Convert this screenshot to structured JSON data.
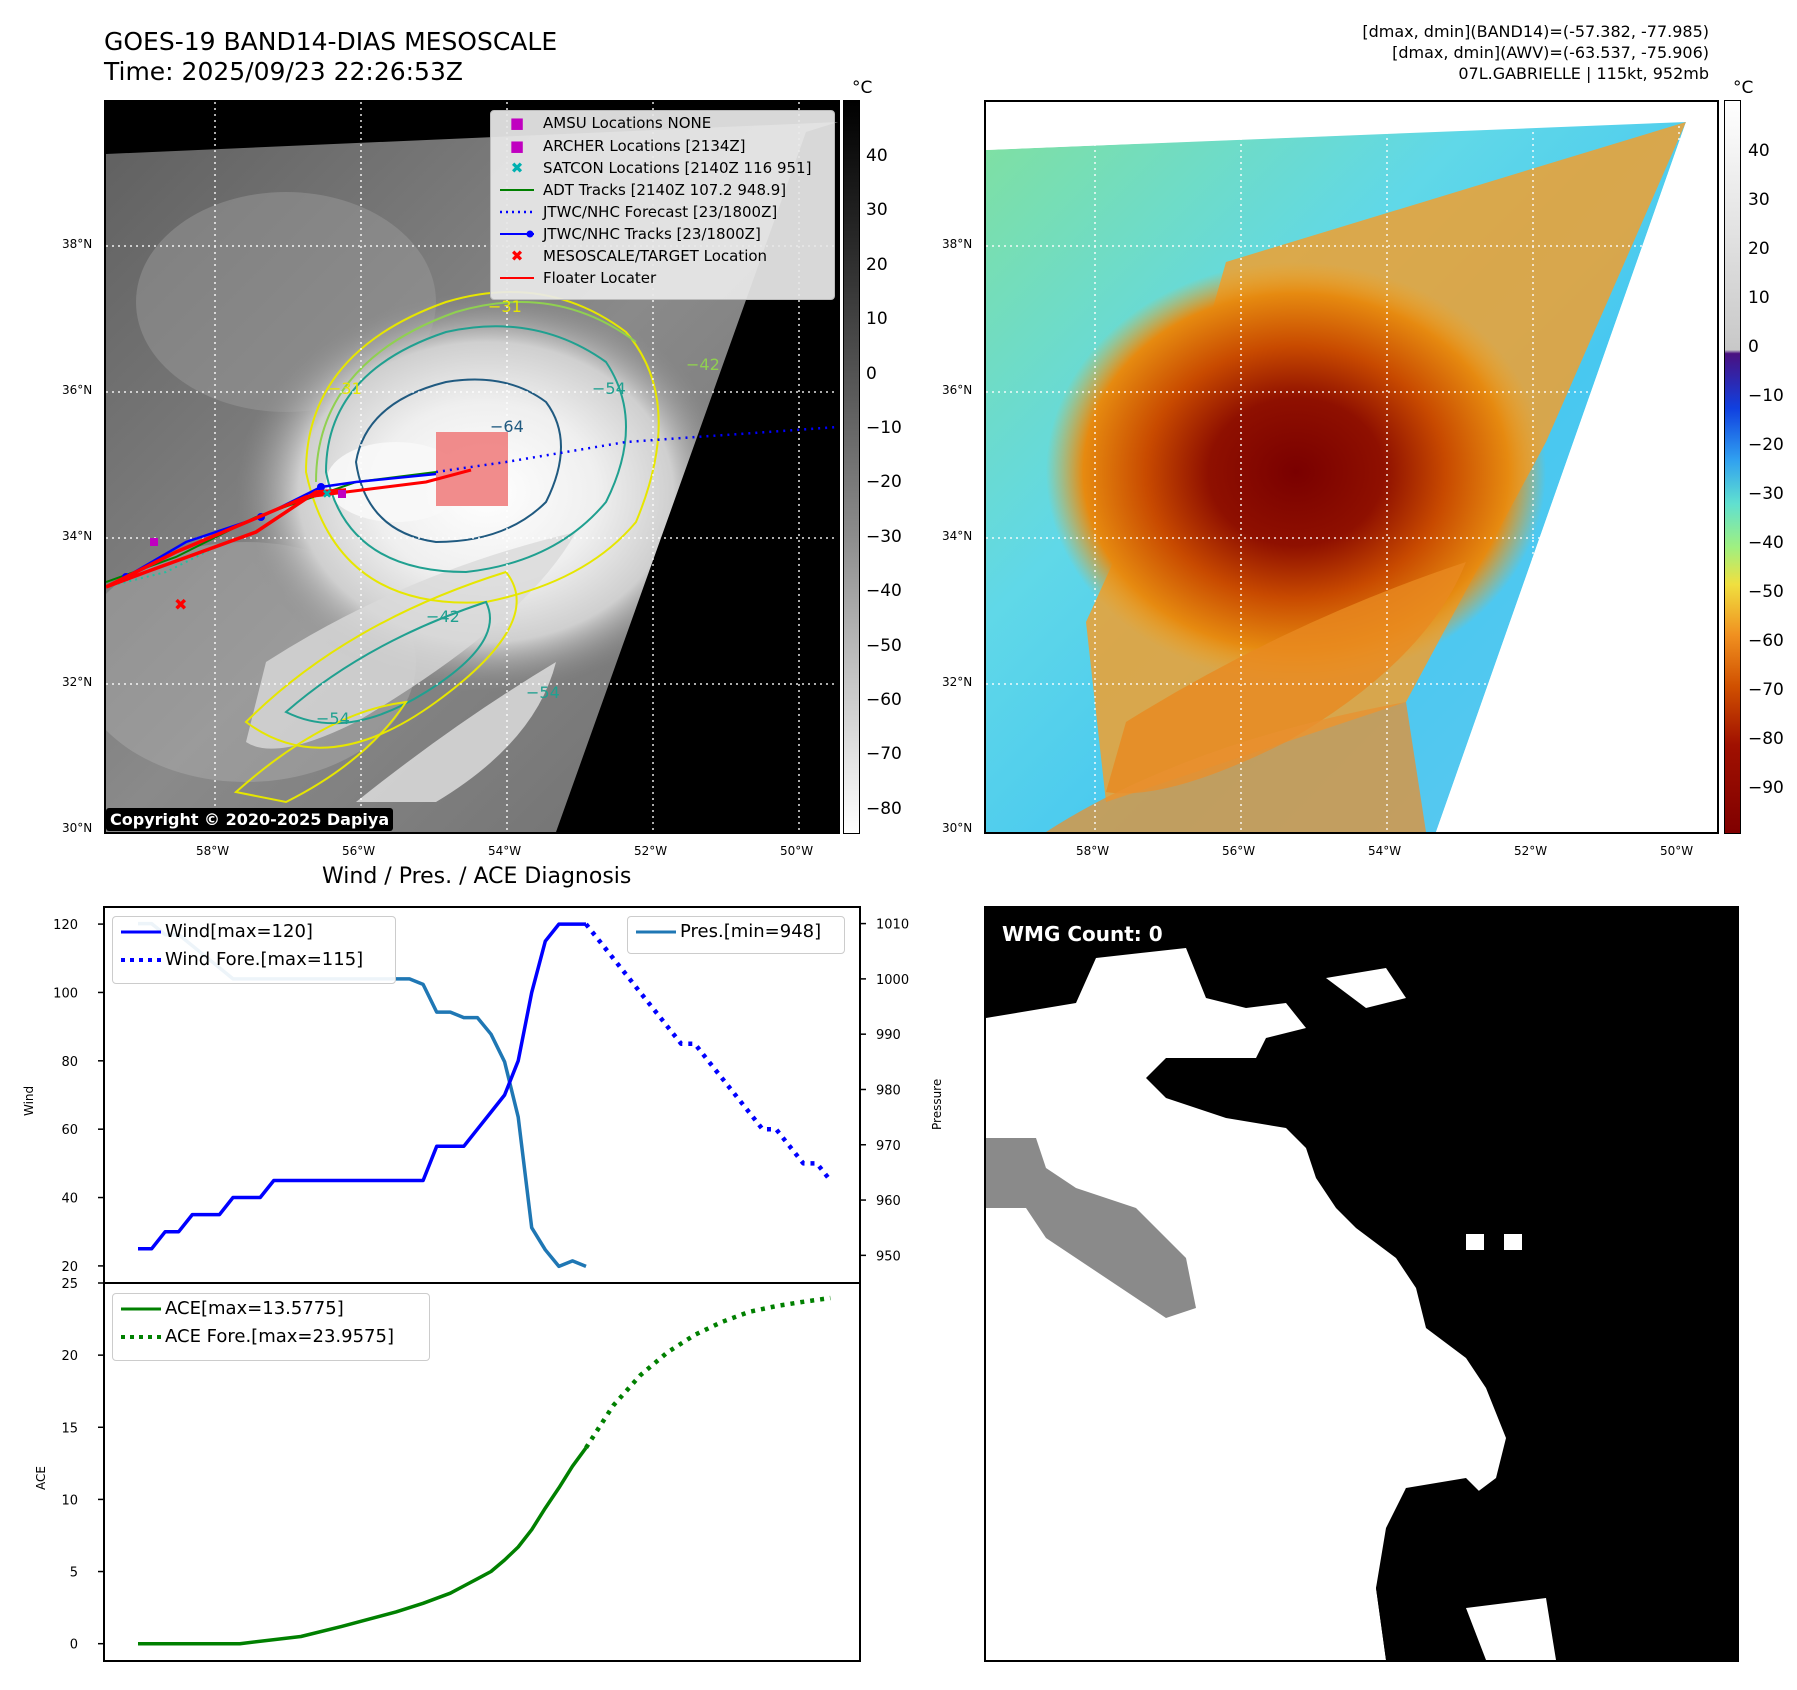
{
  "header": {
    "title_line1": "GOES-19 BAND14-DIAS MESOSCALE",
    "title_line2": "Time: 2025/09/23 22:26:53Z",
    "info_line1": "[dmax, dmin](BAND14)=(-57.382, -77.985)",
    "info_line2": "[dmax, dmin](AWV)=(-63.537, -75.906)",
    "info_line3": "07L.GABRIELLE | 115kt, 952mb"
  },
  "map_axes": {
    "lat_labels": [
      "38°N",
      "36°N",
      "34°N",
      "32°N",
      "30°N"
    ],
    "lon_labels": [
      "58°W",
      "56°W",
      "54°W",
      "52°W",
      "50°W"
    ]
  },
  "ir_panel": {
    "colorbar_unit": "°C",
    "colorbar_ticks": [
      "40",
      "30",
      "20",
      "10",
      "0",
      "−10",
      "−20",
      "−30",
      "−40",
      "−50",
      "−60",
      "−70",
      "−80"
    ],
    "contour_labels": [
      "−31",
      "−54",
      "−64",
      "−42",
      "−54",
      "−54",
      "−31",
      "−42"
    ],
    "copyright": "Copyright © 2020-2025 Dapiya",
    "legend": [
      {
        "label": "AMSU Locations NONE",
        "symbol": "■",
        "color": "#c000c0"
      },
      {
        "label": "ARCHER Locations [2134Z]",
        "symbol": "■",
        "color": "#c000c0"
      },
      {
        "label": "SATCON Locations [2140Z 116 951]",
        "symbol": "✖",
        "color": "#00b0b0"
      },
      {
        "label": "ADT Tracks [2140Z 107.2 948.9]",
        "symbol": "line",
        "color": "#008000"
      },
      {
        "label": "JTWC/NHC Forecast [23/1800Z]",
        "symbol": "dotted",
        "color": "#0000ff"
      },
      {
        "label": "JTWC/NHC Tracks [23/1800Z]",
        "symbol": "dotline",
        "color": "#0000ff"
      },
      {
        "label": "MESOSCALE/TARGET Location",
        "symbol": "✖",
        "color": "#ff0000"
      },
      {
        "label": "Floater Locater",
        "symbol": "line",
        "color": "#ff0000"
      }
    ]
  },
  "wv_panel": {
    "colorbar_unit": "°C",
    "colorbar_ticks": [
      "40",
      "30",
      "20",
      "10",
      "0",
      "−10",
      "−20",
      "−30",
      "−40",
      "−50",
      "−60",
      "−70",
      "−80",
      "−90"
    ]
  },
  "diag": {
    "title": "Wind / Pres. / ACE Diagnosis",
    "wind_ylabel": "Wind",
    "pres_ylabel": "Pressure",
    "ace_ylabel": "ACE",
    "legend_wind": "Wind[max=120]",
    "legend_wind_fore": "Wind Fore.[max=115]",
    "legend_pres": "Pres.[min=948]",
    "legend_ace": "ACE[max=13.5775]",
    "legend_ace_fore": "ACE Fore.[max=23.9575]"
  },
  "wmg": {
    "label": "WMG Count: 0"
  },
  "chart_data": [
    {
      "type": "line",
      "title": "Wind / Pres. / ACE Diagnosis",
      "ylabel": "Wind",
      "ylim": [
        15,
        125
      ],
      "yticks": [
        20,
        40,
        60,
        80,
        100,
        120
      ],
      "xlim": [
        0,
        52
      ],
      "series": [
        {
          "name": "Wind[max=120]",
          "color": "#0000ff",
          "style": "solid",
          "x": [
            0,
            1,
            2,
            3,
            4,
            5,
            6,
            7,
            8,
            9,
            10,
            11,
            12,
            13,
            14,
            15,
            16,
            17,
            18,
            19,
            20,
            21,
            22,
            23,
            24,
            25,
            26,
            27,
            28,
            29,
            30,
            31,
            32,
            33
          ],
          "values": [
            25,
            25,
            30,
            30,
            35,
            35,
            35,
            40,
            40,
            40,
            45,
            45,
            45,
            45,
            45,
            45,
            45,
            45,
            45,
            45,
            45,
            45,
            55,
            55,
            55,
            60,
            65,
            70,
            80,
            100,
            115,
            120,
            120,
            120
          ]
        },
        {
          "name": "Wind Fore.[max=115]",
          "color": "#0000ff",
          "style": "dotted",
          "x": [
            33,
            34,
            35,
            36,
            37,
            38,
            39,
            40,
            41,
            42,
            43,
            44,
            45,
            46,
            47,
            48,
            49,
            50,
            51
          ],
          "values": [
            120,
            115,
            110,
            105,
            100,
            95,
            90,
            85,
            85,
            80,
            75,
            70,
            65,
            60,
            60,
            55,
            50,
            50,
            45
          ]
        }
      ]
    },
    {
      "type": "line",
      "ylabel": "Pressure",
      "ylim": [
        945,
        1013
      ],
      "yticks": [
        950,
        960,
        970,
        980,
        990,
        1000,
        1010
      ],
      "series": [
        {
          "name": "Pres.[min=948]",
          "color": "#1f77b4",
          "style": "solid",
          "x": [
            0,
            1,
            2,
            3,
            4,
            5,
            6,
            7,
            8,
            9,
            10,
            11,
            12,
            13,
            14,
            15,
            16,
            17,
            18,
            19,
            20,
            21,
            22,
            23,
            24,
            25,
            26,
            27,
            28,
            29,
            30,
            31,
            32,
            33
          ],
          "values": [
            1010,
            1010,
            1008,
            1008,
            1006,
            1004,
            1002,
            1000,
            1000,
            1000,
            1000,
            1000,
            1000,
            1000,
            1000,
            1000,
            1000,
            1000,
            1000,
            1000,
            1000,
            999,
            994,
            994,
            993,
            993,
            990,
            985,
            975,
            955,
            951,
            948,
            949,
            948
          ]
        }
      ]
    },
    {
      "type": "line",
      "ylabel": "ACE",
      "ylim": [
        -1.2,
        25
      ],
      "yticks": [
        0,
        5,
        10,
        15,
        20,
        25
      ],
      "series": [
        {
          "name": "ACE[max=13.5775]",
          "color": "#008000",
          "style": "solid",
          "x": [
            0,
            7.5,
            12,
            15,
            17,
            19,
            21,
            23,
            24,
            25,
            26,
            27,
            28,
            29,
            30,
            31,
            32,
            33
          ],
          "values": [
            0,
            0,
            0.5,
            1.2,
            1.7,
            2.2,
            2.8,
            3.5,
            4.0,
            4.5,
            5.0,
            5.8,
            6.7,
            7.9,
            9.4,
            10.8,
            12.3,
            13.5775
          ]
        },
        {
          "name": "ACE Fore.[max=23.9575]",
          "color": "#008000",
          "style": "dotted",
          "x": [
            33,
            35,
            37,
            39,
            41,
            43,
            45,
            47,
            49,
            51
          ],
          "values": [
            13.5775,
            16.5,
            18.6,
            20.2,
            21.4,
            22.3,
            23.0,
            23.4,
            23.7,
            23.9575
          ]
        }
      ]
    }
  ]
}
